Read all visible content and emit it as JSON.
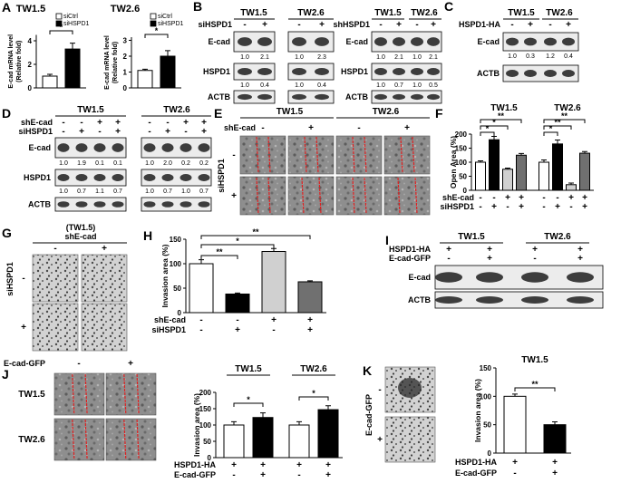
{
  "panels": {
    "A": {
      "label": "A",
      "charts": [
        {
          "type": "bar",
          "title": "TW1.5",
          "y_label": [
            "E-cad mRNA level",
            "(Relative fold)"
          ],
          "legend": [
            "siCtrl",
            "siHSPD1"
          ],
          "colors": [
            "#ffffff",
            "#000000"
          ],
          "values": [
            1.0,
            3.3
          ],
          "errors": [
            0.15,
            0.5
          ],
          "ylim": [
            0,
            4.5
          ],
          "yticks": [
            0,
            2,
            4
          ],
          "significance": [
            "*"
          ]
        },
        {
          "type": "bar",
          "title": "TW2.6",
          "y_label": [
            "E-cad mRNA level",
            "(Relative fold)"
          ],
          "legend": [
            "siCtrl",
            "siHSPD1"
          ],
          "colors": [
            "#ffffff",
            "#000000"
          ],
          "values": [
            1.1,
            2.0
          ],
          "errors": [
            0.08,
            0.35
          ],
          "ylim": [
            0,
            3.2
          ],
          "yticks": [
            0,
            1,
            2,
            3
          ],
          "significance": [
            "*"
          ]
        }
      ]
    },
    "B": {
      "label": "B",
      "blots": [
        {
          "groups": [
            "TW1.5",
            "TW2.6"
          ],
          "conditions": [
            {
              "name": "siHSPD1",
              "signs": [
                "-",
                "+",
                "-",
                "+"
              ]
            }
          ],
          "rows": [
            {
              "name": "E-cad",
              "quant": [
                "1.0",
                "2.1",
                "1.0",
                "2.3"
              ]
            },
            {
              "name": "HSPD1",
              "quant": [
                "1.0",
                "0.4",
                "1.0",
                "0.4"
              ]
            },
            {
              "name": "ACTB"
            }
          ]
        },
        {
          "groups": [
            "TW1.5",
            "TW2.6"
          ],
          "conditions": [
            {
              "name": "shHSPD1",
              "signs": [
                "-",
                "+",
                "-",
                "+"
              ]
            }
          ],
          "rows": [
            {
              "name": "E-cad",
              "quant": [
                "1.0",
                "2.1",
                "1.0",
                "2.1"
              ]
            },
            {
              "name": "HSPD1",
              "quant": [
                "1.0",
                "0.7",
                "1.0",
                "0.5"
              ]
            },
            {
              "name": "ACTB"
            }
          ]
        }
      ]
    },
    "C": {
      "label": "C",
      "blots": [
        {
          "groups": [
            "TW1.5",
            "TW2.6"
          ],
          "conditions": [
            {
              "name": "HSPD1-HA",
              "signs": [
                "-",
                "+",
                "-",
                "+"
              ]
            }
          ],
          "rows": [
            {
              "name": "E-cad",
              "quant": [
                "1.0",
                "0.3",
                "1.2",
                "0.4"
              ]
            },
            {
              "name": "ACTB"
            }
          ]
        }
      ]
    },
    "D": {
      "label": "D",
      "blots": [
        {
          "groups": [
            "TW1.5",
            "TW2.6"
          ],
          "conditions": [
            {
              "name": "shE-cad",
              "signs": [
                "-",
                "-",
                "+",
                "+",
                "-",
                "-",
                "+",
                "+"
              ]
            },
            {
              "name": "siHSPD1",
              "signs": [
                "-",
                "+",
                "-",
                "+",
                "-",
                "+",
                "-",
                "+"
              ]
            }
          ],
          "rows": [
            {
              "name": "E-cad",
              "quant": [
                "1.0",
                "1.9",
                "0.1",
                "0.1",
                "1.0",
                "2.0",
                "0.2",
                "0.2"
              ]
            },
            {
              "name": "HSPD1",
              "quant": [
                "1.0",
                "0.7",
                "1.1",
                "0.7",
                "1.0",
                "0.7",
                "1.0",
                "0.7"
              ]
            },
            {
              "name": "ACTB"
            }
          ]
        }
      ]
    },
    "E": {
      "label": "E",
      "images": {
        "groups": [
          "TW1.5",
          "TW2.6"
        ],
        "column_condition": {
          "name": "shE-cad",
          "signs": [
            "-",
            "+",
            "-",
            "+"
          ]
        },
        "row_condition": {
          "name": "siHSPD1",
          "signs": [
            "-",
            "+"
          ]
        }
      }
    },
    "F": {
      "label": "F",
      "charts": [
        {
          "type": "bar",
          "groups": [
            "TW1.5",
            "TW2.6"
          ],
          "y_label": [
            "Open Area (%)"
          ],
          "colors": [
            "#ffffff",
            "#000000",
            "#d0d0d0",
            "#707070",
            "#ffffff",
            "#000000",
            "#d0d0d0",
            "#707070"
          ],
          "values": [
            100,
            180,
            75,
            125,
            100,
            165,
            20,
            132
          ],
          "errors": [
            5,
            12,
            4,
            6,
            8,
            14,
            6,
            6
          ],
          "ylim": [
            0,
            200
          ],
          "yticks": [
            0,
            50,
            100,
            150,
            200
          ],
          "significance": [
            "*",
            "*",
            "**",
            "*",
            "**",
            "**"
          ],
          "rows": [
            {
              "name": "shE-cad",
              "signs": [
                "-",
                "-",
                "+",
                "+",
                "-",
                "-",
                "+",
                "+"
              ]
            },
            {
              "name": "siHSPD1",
              "signs": [
                "-",
                "+",
                "-",
                "+",
                "-",
                "+",
                "-",
                "+"
              ]
            }
          ]
        }
      ]
    },
    "G": {
      "label": "G",
      "images": {
        "heading": "(TW1.5)",
        "column_condition": {
          "name": "shE-cad",
          "signs": [
            "-",
            "+"
          ]
        },
        "row_condition": {
          "name": "siHSPD1",
          "signs": [
            "-",
            "+"
          ]
        }
      }
    },
    "H": {
      "label": "H",
      "charts": [
        {
          "type": "bar",
          "y_label": [
            "Invasion area (%)"
          ],
          "colors": [
            "#ffffff",
            "#000000",
            "#d0d0d0",
            "#707070"
          ],
          "values": [
            100,
            38,
            125,
            63
          ],
          "errors": [
            8,
            2,
            6,
            2
          ],
          "ylim": [
            0,
            150
          ],
          "yticks": [
            0,
            50,
            100,
            150
          ],
          "significance": [
            "**",
            "*",
            "**"
          ],
          "rows": [
            {
              "name": "shE-cad",
              "signs": [
                "-",
                "-",
                "+",
                "+"
              ]
            },
            {
              "name": "siHSPD1",
              "signs": [
                "-",
                "+",
                "-",
                "+"
              ]
            }
          ]
        }
      ]
    },
    "I": {
      "label": "I",
      "blots": [
        {
          "groups": [
            "TW1.5",
            "TW2.6"
          ],
          "conditions": [
            {
              "name": "HSPD1-HA",
              "signs": [
                "+",
                "+",
                "+",
                "+"
              ]
            },
            {
              "name": "E-cad-GFP",
              "signs": [
                "-",
                "+",
                "-",
                "+"
              ]
            }
          ],
          "rows": [
            {
              "name": "E-cad"
            },
            {
              "name": "ACTB"
            }
          ]
        }
      ]
    },
    "J": {
      "label": "J",
      "images": {
        "column_condition": {
          "name": "E-cad-GFP",
          "signs": [
            "-",
            "+"
          ]
        },
        "row_labels": [
          "TW1.5",
          "TW2.6"
        ]
      },
      "charts": [
        {
          "type": "bar",
          "groups": [
            "TW1.5",
            "TW2.6"
          ],
          "y_label": [
            "Invasion area (%)"
          ],
          "colors": [
            "#ffffff",
            "#000000",
            "#ffffff",
            "#000000"
          ],
          "values": [
            100,
            123,
            100,
            147
          ],
          "errors": [
            10,
            14,
            10,
            12
          ],
          "ylim": [
            0,
            200
          ],
          "yticks": [
            0,
            50,
            100,
            150,
            200
          ],
          "significance": [
            "*",
            "*"
          ],
          "rows": [
            {
              "name": "HSPD1-HA",
              "signs": [
                "+",
                "+",
                "+",
                "+"
              ]
            },
            {
              "name": "E-cad-GFP",
              "signs": [
                "-",
                "+",
                "-",
                "+"
              ]
            }
          ]
        }
      ]
    },
    "K": {
      "label": "K",
      "images": {
        "row_condition": {
          "name": "E-cad-GFP",
          "signs": [
            "-",
            "+"
          ]
        }
      },
      "charts": [
        {
          "type": "bar",
          "title": "TW1.5",
          "y_label": [
            "Invasion area (%)"
          ],
          "colors": [
            "#ffffff",
            "#000000"
          ],
          "values": [
            100,
            50
          ],
          "errors": [
            4,
            5
          ],
          "ylim": [
            0,
            150
          ],
          "yticks": [
            0,
            50,
            100,
            150
          ],
          "significance": [
            "**"
          ],
          "rows": [
            {
              "name": "HSPD1-HA",
              "signs": [
                "+",
                "+"
              ]
            },
            {
              "name": "E-cad-GFP",
              "signs": [
                "-",
                "+"
              ]
            }
          ]
        }
      ]
    }
  }
}
